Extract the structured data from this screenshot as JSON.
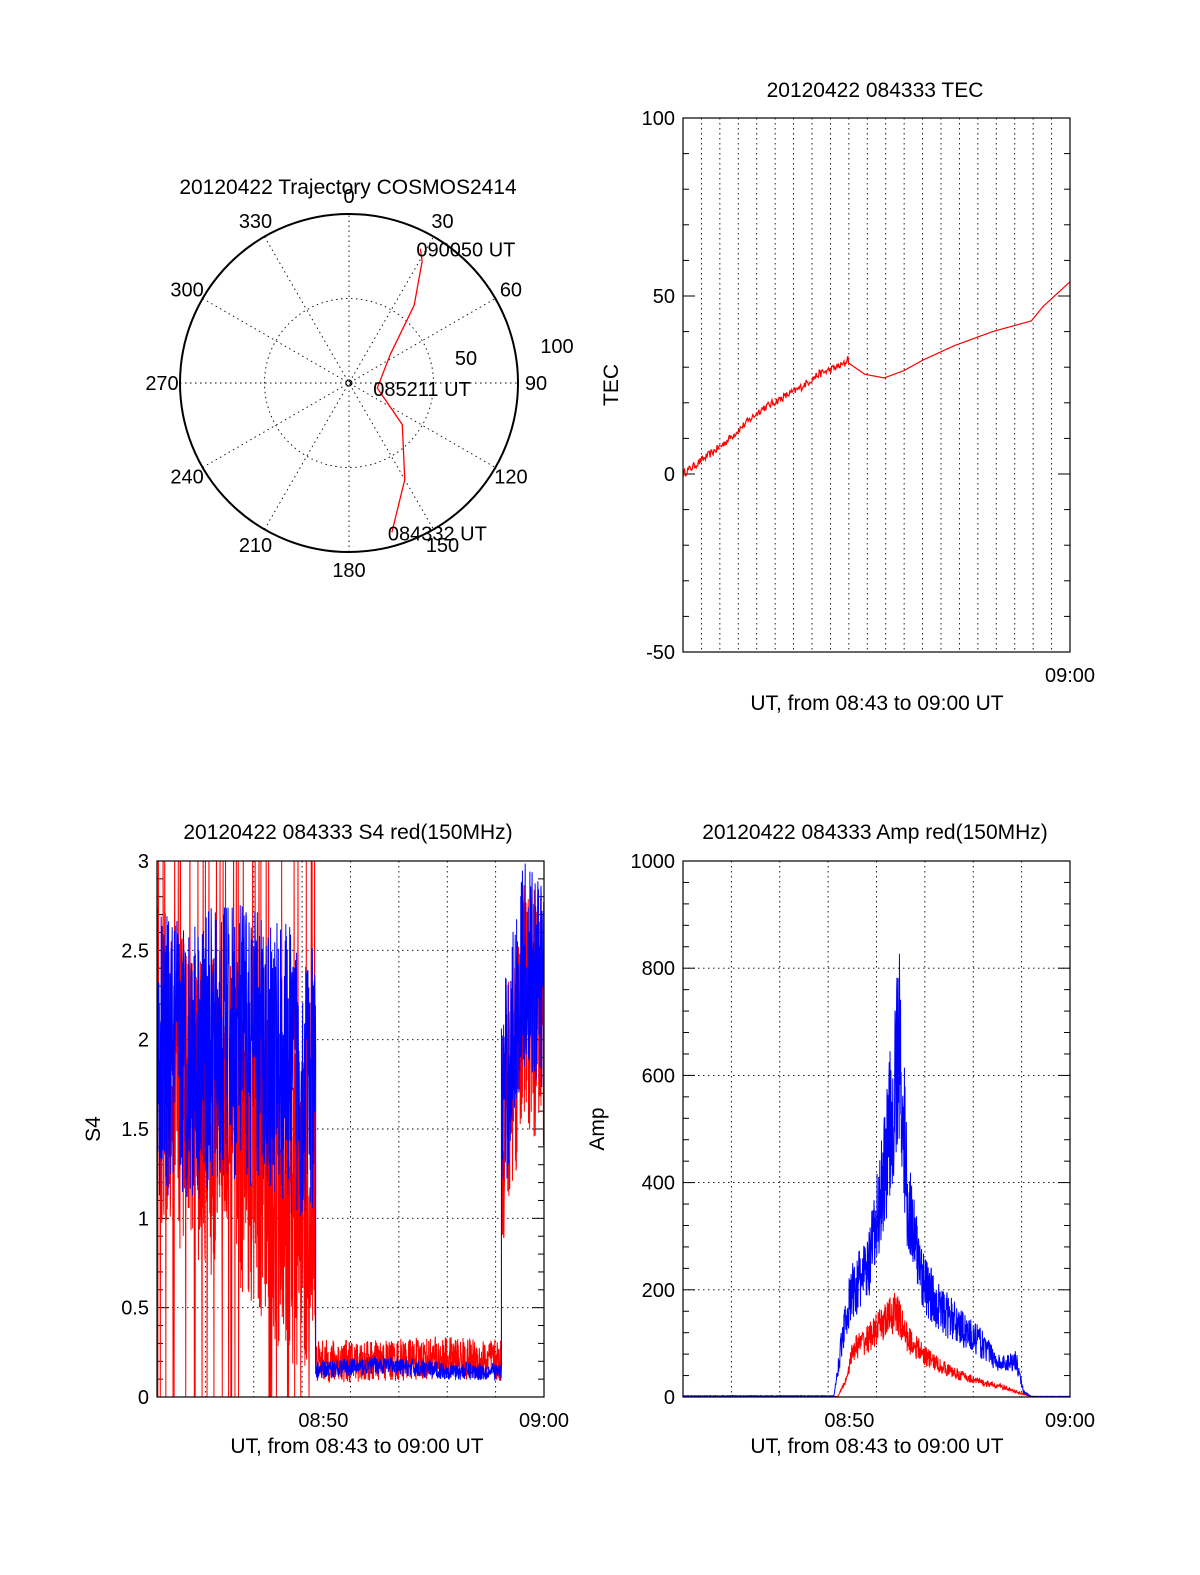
{
  "chart_data": [
    {
      "id": "trajectory",
      "type": "polar",
      "title": "20120422 Trajectory COSMOS2414",
      "angle_labels": [
        "0",
        "30",
        "60",
        "90",
        "120",
        "150",
        "180",
        "210",
        "240",
        "270",
        "300",
        "330"
      ],
      "radius_labels": [
        "50",
        "100"
      ],
      "series": [
        {
          "color": "#ff0000",
          "points": [
            {
              "az": 164,
              "r": 92
            },
            {
              "az": 150,
              "r": 66
            },
            {
              "az": 128,
              "r": 40
            },
            {
              "az": 100,
              "r": 17
            },
            {
              "az": 55,
              "r": 30
            },
            {
              "az": 40,
              "r": 60
            },
            {
              "az": 31,
              "r": 84
            },
            {
              "az": 28,
              "r": 90
            }
          ]
        }
      ],
      "annotations": [
        {
          "text": "090050 UT",
          "az": 28,
          "r": 90
        },
        {
          "text": "085211 UT",
          "az": 100,
          "r": 17
        },
        {
          "text": "084332 UT",
          "az": 164,
          "r": 92
        }
      ]
    },
    {
      "id": "tec",
      "type": "line",
      "title": "20120422 084333 TEC",
      "xlabel": "UT, from 08:43 to 09:00 UT",
      "ylabel": "TEC",
      "xlim": [
        0.0,
        1.0
      ],
      "ylim": [
        -50,
        100
      ],
      "yticks": [
        -50,
        0,
        50,
        100
      ],
      "xticks": [
        {
          "x": 1.0,
          "label": "09:00"
        }
      ],
      "series": [
        {
          "color": "#ff0000",
          "points": [
            [
              0.0,
              0
            ],
            [
              0.05,
              4
            ],
            [
              0.1,
              8
            ],
            [
              0.15,
              13
            ],
            [
              0.2,
              18
            ],
            [
              0.25,
              21
            ],
            [
              0.3,
              24
            ],
            [
              0.35,
              28
            ],
            [
              0.42,
              31
            ],
            [
              0.425,
              33
            ],
            [
              0.43,
              31
            ],
            [
              0.47,
              28
            ],
            [
              0.52,
              27
            ],
            [
              0.57,
              29
            ],
            [
              0.62,
              32
            ],
            [
              0.7,
              36
            ],
            [
              0.8,
              40
            ],
            [
              0.9,
              43
            ],
            [
              0.93,
              47
            ],
            [
              1.0,
              54
            ]
          ]
        }
      ]
    },
    {
      "id": "s4",
      "type": "line",
      "title": "20120422 084333 S4 red(150MHz)",
      "xlabel": "UT, from 08:43 to 09:00 UT",
      "ylabel": "S4",
      "xlim": [
        0.0,
        1.0
      ],
      "ylim": [
        0,
        3
      ],
      "yticks": [
        0,
        0.5,
        1,
        1.5,
        2,
        2.5,
        3
      ],
      "ytick_labels": [
        "0",
        "0.5",
        "1",
        "1.5",
        "2",
        "2.5",
        "3"
      ],
      "xticks": [
        {
          "x": 0.43,
          "label": "08:50"
        },
        {
          "x": 1.0,
          "label": "09:00"
        }
      ],
      "series": [
        {
          "color": "#ff0000",
          "segments": [
            {
              "x0": 0.0,
              "x1": 0.41,
              "base": [
                1.9,
                1.6,
                1.5,
                1.2,
                0.9
              ],
              "noise": 0.9,
              "drops": true
            },
            {
              "x0": 0.41,
              "x1": 0.89,
              "base": [
                0.2,
                0.2,
                0.22,
                0.2
              ],
              "noise": 0.12
            },
            {
              "x0": 0.89,
              "x1": 1.0,
              "base": [
                1.4,
                2.2,
                2.1
              ],
              "noise": 0.7
            }
          ]
        },
        {
          "color": "#0000ff",
          "segments": [
            {
              "x0": 0.0,
              "x1": 0.41,
              "base": [
                1.9,
                1.9,
                2.0,
                1.9,
                1.7
              ],
              "noise": 0.8
            },
            {
              "x0": 0.41,
              "x1": 0.89,
              "base": [
                0.15,
                0.18,
                0.15,
                0.14
              ],
              "noise": 0.05
            },
            {
              "x0": 0.89,
              "x1": 1.0,
              "base": [
                1.6,
                2.4,
                2.3
              ],
              "noise": 0.6
            }
          ]
        }
      ]
    },
    {
      "id": "amp",
      "type": "line",
      "title": "20120422 084333 Amp red(150MHz)",
      "xlabel": "UT, from 08:43 to 09:00 UT",
      "ylabel": "Amp",
      "xlim": [
        0.0,
        1.0
      ],
      "ylim": [
        0,
        1000
      ],
      "yticks": [
        0,
        200,
        400,
        600,
        800,
        1000
      ],
      "xticks": [
        {
          "x": 0.43,
          "label": "08:50"
        },
        {
          "x": 1.0,
          "label": "09:00"
        }
      ],
      "series": [
        {
          "color": "#ff0000",
          "points": [
            [
              0.0,
              1
            ],
            [
              0.4,
              1
            ],
            [
              0.42,
              30
            ],
            [
              0.44,
              90
            ],
            [
              0.48,
              110
            ],
            [
              0.52,
              140
            ],
            [
              0.55,
              160
            ],
            [
              0.58,
              110
            ],
            [
              0.62,
              80
            ],
            [
              0.66,
              60
            ],
            [
              0.7,
              45
            ],
            [
              0.74,
              35
            ],
            [
              0.78,
              25
            ],
            [
              0.82,
              20
            ],
            [
              0.86,
              10
            ],
            [
              0.9,
              1
            ],
            [
              1.0,
              1
            ]
          ],
          "noise": 0.25
        },
        {
          "color": "#0000ff",
          "points": [
            [
              0.0,
              2
            ],
            [
              0.39,
              2
            ],
            [
              0.42,
              150
            ],
            [
              0.44,
              200
            ],
            [
              0.48,
              240
            ],
            [
              0.5,
              320
            ],
            [
              0.53,
              480
            ],
            [
              0.56,
              640
            ],
            [
              0.58,
              380
            ],
            [
              0.6,
              280
            ],
            [
              0.63,
              200
            ],
            [
              0.67,
              160
            ],
            [
              0.72,
              130
            ],
            [
              0.77,
              100
            ],
            [
              0.82,
              60
            ],
            [
              0.86,
              70
            ],
            [
              0.88,
              10
            ],
            [
              0.9,
              1
            ],
            [
              1.0,
              1
            ]
          ],
          "noise": 0.28
        }
      ]
    }
  ]
}
